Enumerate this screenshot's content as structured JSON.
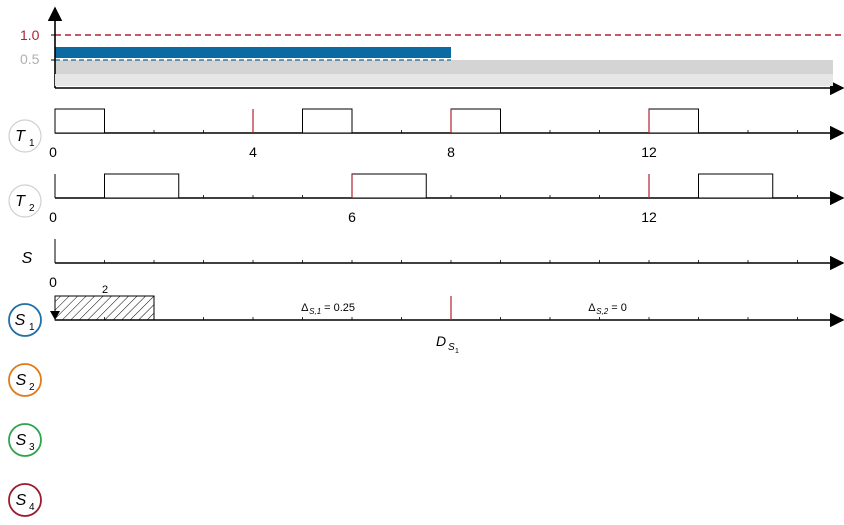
{
  "colors": {
    "utilization_bar": "#0a6aa1",
    "dashed_limit": "#b22233",
    "gray_band": "#d4d4d4",
    "deadline_tick": "#b22233",
    "s1": "#1f6fa8",
    "s2": "#e07b1a",
    "s3": "#2ea44f",
    "s4": "#9b1b30"
  },
  "utilization_panel": {
    "y_labels": [
      {
        "text": "1.0",
        "color": "#b22233"
      },
      {
        "text": "0.5",
        "color": "#b0b0b0"
      }
    ],
    "bar_level": 0.55,
    "bar_end_time": 8
  },
  "timeline": {
    "time_max": 16,
    "tick_step": 1
  },
  "rows": [
    {
      "id": "T1",
      "label_main": "T",
      "label_sub": "1",
      "style": "gray-circle",
      "origin_label": "0",
      "tick_labels": [
        {
          "t": 4,
          "text": "4"
        },
        {
          "t": 8,
          "text": "8"
        },
        {
          "t": 12,
          "text": "12"
        }
      ],
      "deadlines": [
        4,
        8,
        12
      ],
      "jobs": [
        {
          "start": 0,
          "end": 1
        },
        {
          "start": 5,
          "end": 6
        },
        {
          "start": 8,
          "end": 9
        },
        {
          "start": 12,
          "end": 13
        }
      ]
    },
    {
      "id": "T2",
      "label_main": "T",
      "label_sub": "2",
      "style": "gray-circle",
      "origin_label": "0",
      "tick_labels": [
        {
          "t": 6,
          "text": "6"
        },
        {
          "t": 12,
          "text": "12"
        }
      ],
      "deadlines": [
        6,
        12
      ],
      "jobs": [
        {
          "start": 1,
          "end": 2.5
        },
        {
          "start": 6,
          "end": 7.5
        },
        {
          "start": 13,
          "end": 14.5
        }
      ]
    },
    {
      "id": "S",
      "label_main": "S",
      "label_sub": "",
      "style": "plain",
      "origin_label": "0",
      "tick_labels": [],
      "deadlines": [],
      "jobs": []
    },
    {
      "id": "S1",
      "label_main": "S",
      "label_sub": "1",
      "style": "colored-circle",
      "circle_color": "#1f6fa8",
      "release_at": 0,
      "hatched_job": {
        "start": 0,
        "end": 2,
        "label": "2"
      },
      "deadline": 8,
      "deadline_label": {
        "main": "D",
        "sub": "S",
        "subsub": "1"
      },
      "annotations": [
        {
          "t": 5.7,
          "main": "Δ",
          "sub": "S,1",
          "rest": " = 0.25"
        },
        {
          "t": 11.5,
          "main": "Δ",
          "sub": "S,2",
          "rest": " = 0"
        }
      ]
    }
  ],
  "legend_circles": [
    {
      "main": "S",
      "sub": "2",
      "color": "#e07b1a"
    },
    {
      "main": "S",
      "sub": "3",
      "color": "#2ea44f"
    },
    {
      "main": "S",
      "sub": "4",
      "color": "#9b1b30"
    }
  ]
}
